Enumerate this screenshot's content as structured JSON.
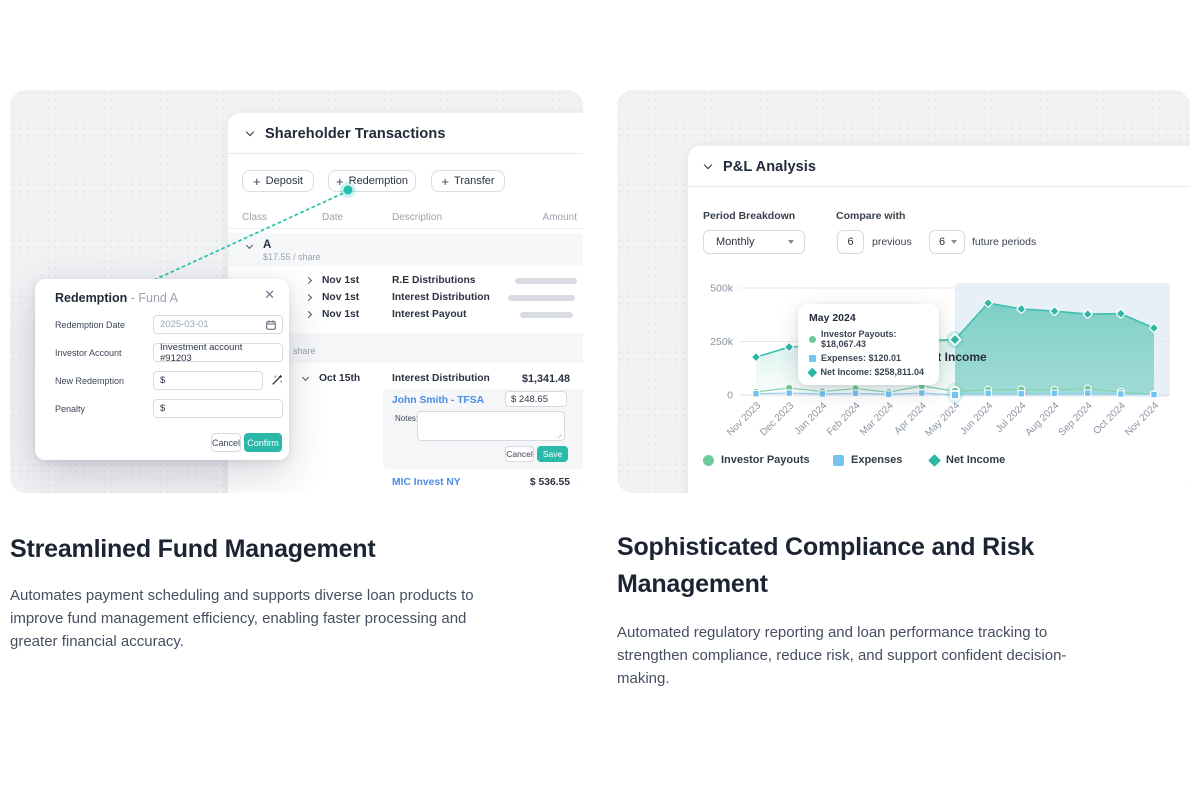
{
  "left_card": {
    "panel": {
      "title": "Shareholder Transactions",
      "buttons": [
        {
          "label": "Deposit"
        },
        {
          "label": "Redemption"
        },
        {
          "label": "Transfer"
        }
      ],
      "columns": {
        "class": "Class",
        "date": "Date",
        "description": "Description",
        "amount": "Amount"
      },
      "class_a": {
        "name": "A",
        "share_price": "$17.55 / share"
      },
      "rows": [
        {
          "date": "Nov 1st",
          "description": "R.E Distributions"
        },
        {
          "date": "Nov 1st",
          "description": "Interest Distribution"
        },
        {
          "date": "Nov 1st",
          "description": "Interest Payout"
        }
      ],
      "class_b_fragment": "share",
      "oct_row": {
        "date": "Oct 15th",
        "description": "Interest Distribution",
        "amount": "$1,341.48"
      },
      "detail": {
        "investor": "John Smith - TFSA",
        "amount": "$ 248.65",
        "notes_label": "Notes:",
        "cancel": "Cancel",
        "save": "Save"
      },
      "footer_row": {
        "investor": "MIC Invest NY",
        "amount": "$ 536.55"
      }
    },
    "modal": {
      "title": "Redemption",
      "subtitle": "- Fund A",
      "fields": [
        {
          "label": "Redemption Date",
          "value": "2025-03-01"
        },
        {
          "label": "Investor Account",
          "value": "Investment account #91203"
        },
        {
          "label": "New Redemption",
          "value": "$"
        },
        {
          "label": "Penalty",
          "value": "$"
        }
      ],
      "cancel": "Cancel",
      "confirm": "Confirm"
    },
    "heading": "Streamlined Fund Management",
    "description": "Automates payment scheduling and supports diverse loan products to improve fund management efficiency, enabling faster processing and greater financial accuracy."
  },
  "right_card": {
    "panel_title": "P&L Analysis",
    "controls": {
      "period_label": "Period Breakdown",
      "period_value": "Monthly",
      "compare_label": "Compare with",
      "previous_value": "6",
      "previous_text": "previous",
      "future_value": "6",
      "future_text": "future periods"
    },
    "tooltip": {
      "title": "May 2024",
      "rows": [
        "Investor Payouts: $18,067.43",
        "Expenses: $120.01",
        "Net Income: $258,811.04"
      ]
    },
    "chart_label": "Net Income",
    "heading": "Sophisticated Compliance and Risk Management",
    "description": "Automated regulatory reporting and loan performance tracking to strengthen compliance, reduce risk, and support confident decision-making."
  },
  "chart_data": {
    "type": "line",
    "title": "P&L Analysis",
    "categories": [
      "Nov 2023",
      "Dec 2023",
      "Jan 2024",
      "Feb 2024",
      "Mar 2024",
      "Apr 2024",
      "May 2024",
      "Jun 2024",
      "Jul 2024",
      "Aug 2024",
      "Sep 2024",
      "Oct 2024",
      "Nov 2024"
    ],
    "series": [
      {
        "name": "Investor Payouts",
        "marker": "circle",
        "color": "#6fcb97",
        "line_color": "#85d3a8",
        "values": [
          14000,
          33000,
          16000,
          30000,
          13000,
          42000,
          18067.43,
          24000,
          26000,
          23000,
          30000,
          14000,
          3000
        ]
      },
      {
        "name": "Expenses",
        "marker": "square",
        "color": "#73c4ee",
        "line_color": "#93d0f2",
        "values": [
          6000,
          9000,
          5000,
          8000,
          4000,
          9000,
          120.01,
          8000,
          6000,
          8000,
          9000,
          5000,
          2000
        ]
      },
      {
        "name": "Net Income",
        "marker": "diamond",
        "color": "#2fb7a6",
        "line_color": "#3fbfae",
        "area": true,
        "values": [
          177000,
          224000,
          232000,
          240000,
          248000,
          254000,
          258811.04,
          430000,
          402000,
          392000,
          378000,
          380000,
          313000
        ]
      }
    ],
    "ylim": [
      0,
      500000
    ],
    "y_ticks": [
      {
        "label": "500k",
        "value": 500000
      },
      {
        "label": "250k",
        "value": 250000
      },
      {
        "label": "0",
        "value": 0
      }
    ],
    "highlight_index": 6,
    "future_start_index": 6,
    "grid": true,
    "legend_position": "bottom"
  }
}
